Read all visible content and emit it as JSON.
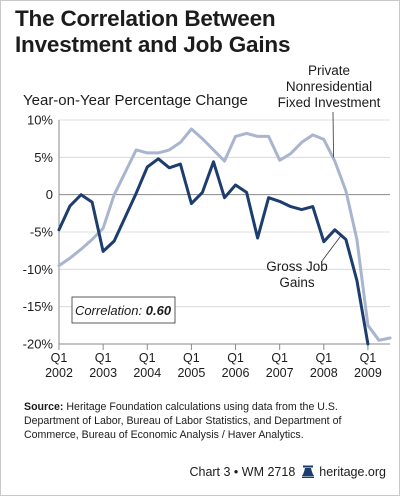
{
  "title": "The Correlation Between Investment and Job Gains",
  "y_axis_title": "Year-on-Year Percentage Change",
  "source_label": "Source:",
  "source_text": "Heritage Foundation calculations using data from the U.S. Department of Labor, Bureau of Labor Statistics, and Department of Commerce, Bureau of Economic Analysis / Haver Analytics.",
  "footer": {
    "chart_id": "Chart 3 • WM 2718",
    "site": "heritage.org",
    "icon": "liberty-bell-icon"
  },
  "colors": {
    "investment": "#a9b5cf",
    "jobs": "#1d3d6e",
    "text": "#1c1c1c",
    "axis": "#8a8a8a",
    "grid": "#d4d4d4"
  },
  "chart_data": {
    "type": "line",
    "ylim": [
      -20,
      10
    ],
    "yticks": [
      10,
      5,
      0,
      -5,
      -10,
      -15,
      -20
    ],
    "ytick_labels": [
      "10%",
      "5%",
      "0",
      "-5%",
      "-10%",
      "-15%",
      "-20%"
    ],
    "x_range": [
      2002.0,
      2009.5
    ],
    "xticks": [
      {
        "x": 2002.0,
        "quarter": "Q1",
        "year": "2002"
      },
      {
        "x": 2003.0,
        "quarter": "Q1",
        "year": "2003"
      },
      {
        "x": 2004.0,
        "quarter": "Q1",
        "year": "2004"
      },
      {
        "x": 2005.0,
        "quarter": "Q1",
        "year": "2005"
      },
      {
        "x": 2006.0,
        "quarter": "Q1",
        "year": "2006"
      },
      {
        "x": 2007.0,
        "quarter": "Q1",
        "year": "2007"
      },
      {
        "x": 2008.0,
        "quarter": "Q1",
        "year": "2008"
      },
      {
        "x": 2009.0,
        "quarter": "Q1",
        "year": "2009"
      }
    ],
    "grid": "horizontal",
    "annotation": {
      "label": "Correlation:",
      "value": "0.60"
    },
    "series": [
      {
        "name": "Private Nonresidential Fixed Investment",
        "label_lines": [
          "Private",
          "Nonresidential",
          "Fixed Investment"
        ],
        "color": "#a9b5cf",
        "points": [
          [
            2002.0,
            -9.5
          ],
          [
            2002.25,
            -8.5
          ],
          [
            2002.5,
            -7.3
          ],
          [
            2002.75,
            -6.0
          ],
          [
            2003.0,
            -4.5
          ],
          [
            2003.25,
            0.0
          ],
          [
            2003.5,
            3.0
          ],
          [
            2003.75,
            6.0
          ],
          [
            2004.0,
            5.6
          ],
          [
            2004.25,
            5.6
          ],
          [
            2004.5,
            6.0
          ],
          [
            2004.75,
            7.0
          ],
          [
            2005.0,
            8.8
          ],
          [
            2005.25,
            7.5
          ],
          [
            2005.5,
            6.0
          ],
          [
            2005.75,
            4.5
          ],
          [
            2006.0,
            7.8
          ],
          [
            2006.25,
            8.2
          ],
          [
            2006.5,
            7.8
          ],
          [
            2006.75,
            7.8
          ],
          [
            2007.0,
            4.6
          ],
          [
            2007.25,
            5.5
          ],
          [
            2007.5,
            7.0
          ],
          [
            2007.75,
            8.0
          ],
          [
            2008.0,
            7.4
          ],
          [
            2008.25,
            4.5
          ],
          [
            2008.5,
            0.5
          ],
          [
            2008.75,
            -6.0
          ],
          [
            2009.0,
            -17.5
          ],
          [
            2009.25,
            -19.5
          ],
          [
            2009.5,
            -19.2
          ]
        ]
      },
      {
        "name": "Gross Job Gains",
        "label_lines": [
          "Gross Job",
          "Gains"
        ],
        "color": "#1d3d6e",
        "points": [
          [
            2002.0,
            -4.7
          ],
          [
            2002.25,
            -1.5
          ],
          [
            2002.5,
            0.0
          ],
          [
            2002.75,
            -1.0
          ],
          [
            2003.0,
            -7.6
          ],
          [
            2003.25,
            -6.2
          ],
          [
            2003.5,
            -3.0
          ],
          [
            2003.75,
            0.2
          ],
          [
            2004.0,
            3.7
          ],
          [
            2004.25,
            4.8
          ],
          [
            2004.5,
            3.6
          ],
          [
            2004.75,
            4.1
          ],
          [
            2005.0,
            -1.2
          ],
          [
            2005.25,
            0.3
          ],
          [
            2005.5,
            4.4
          ],
          [
            2005.75,
            -0.4
          ],
          [
            2006.0,
            1.3
          ],
          [
            2006.25,
            0.3
          ],
          [
            2006.5,
            -5.8
          ],
          [
            2006.75,
            -0.4
          ],
          [
            2007.0,
            -0.9
          ],
          [
            2007.25,
            -1.6
          ],
          [
            2007.5,
            -2.0
          ],
          [
            2007.75,
            -1.6
          ],
          [
            2008.0,
            -6.3
          ],
          [
            2008.25,
            -4.7
          ],
          [
            2008.5,
            -6.0
          ],
          [
            2008.75,
            -11.5
          ],
          [
            2009.0,
            -20.0
          ]
        ]
      }
    ]
  }
}
